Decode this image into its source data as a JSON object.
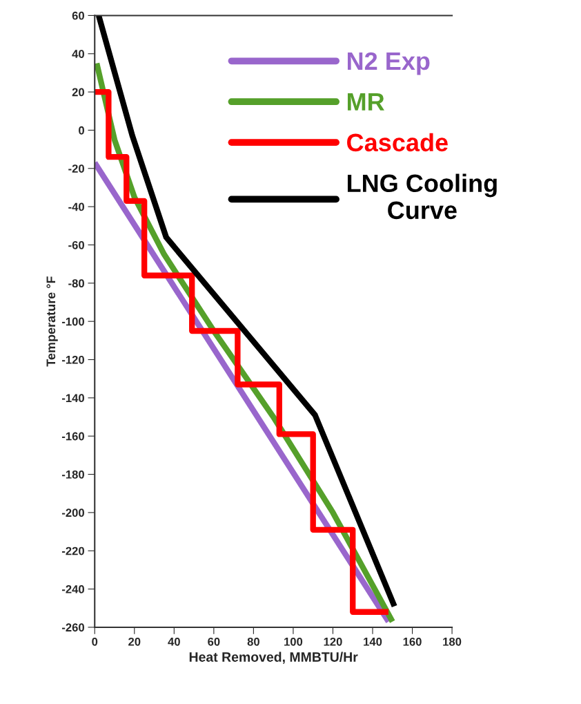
{
  "chart_data": {
    "type": "line",
    "xlabel": "Heat Removed, MMBTU/Hr",
    "ylabel": "Temperature °F",
    "xlim": [
      0,
      180
    ],
    "xticks": [
      0,
      20,
      40,
      60,
      80,
      100,
      120,
      140,
      160,
      180
    ],
    "ylim": [
      -260,
      60
    ],
    "yticks": [
      -260,
      -240,
      -220,
      -200,
      -180,
      -160,
      -140,
      -120,
      -100,
      -80,
      -60,
      -40,
      -20,
      0,
      20,
      40,
      60
    ],
    "grid": false,
    "legend": "right",
    "marker": "none",
    "line_style": "solid",
    "series": [
      {
        "name": "N2 Exp",
        "color": "#9966cc",
        "x": [
          0,
          148
        ],
        "values": [
          -17,
          -257
        ]
      },
      {
        "name": "MR",
        "color": "#55a02a",
        "x": [
          1,
          10,
          20,
          35,
          60,
          90,
          120,
          150
        ],
        "values": [
          35,
          -5,
          -35,
          -65,
          -105,
          -150,
          -200,
          -257
        ]
      },
      {
        "name": "Cascade",
        "color": "#ff0000",
        "x": [
          0,
          7,
          7,
          16,
          16,
          25,
          25,
          49,
          49,
          72,
          72,
          93,
          93,
          110,
          110,
          130,
          130,
          148
        ],
        "values": [
          20,
          20,
          -14,
          -14,
          -37,
          -37,
          -76,
          -76,
          -105,
          -105,
          -133,
          -133,
          -159,
          -159,
          -209,
          -209,
          -252,
          -252
        ]
      },
      {
        "name": "LNG Cooling\nCurve",
        "color": "#000000",
        "x": [
          2,
          19,
          36,
          111,
          151
        ],
        "values": [
          60,
          -3,
          -56,
          -149,
          -249
        ]
      }
    ]
  }
}
